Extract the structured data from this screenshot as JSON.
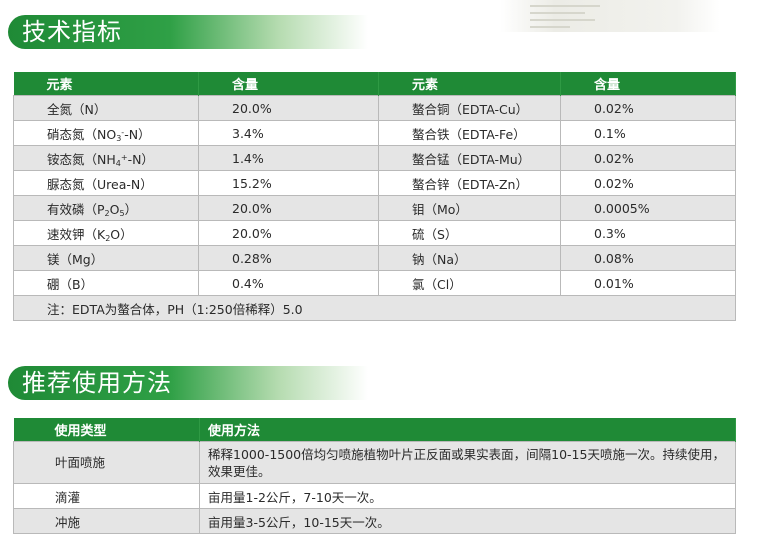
{
  "section1": {
    "title": "技术指标"
  },
  "section2": {
    "title": "推荐使用方法"
  },
  "spec_table": {
    "headers": [
      "元素",
      "含量",
      "元素",
      "含量"
    ],
    "rows": [
      {
        "l_name": "全氮（N）",
        "l_val": "20.0%",
        "r_name": "螯合铜（EDTA-Cu）",
        "r_val": "0.02%"
      },
      {
        "l_name_pre": "硝态氮（NO",
        "l_name_sub": "3",
        "l_name_sup": "-",
        "l_name_post": "-N）",
        "l_val": "3.4%",
        "r_name": "螯合铁（EDTA-Fe）",
        "r_val": "0.1%"
      },
      {
        "l_name_pre": "铵态氮（NH",
        "l_name_sub": "4",
        "l_name_sup": "+",
        "l_name_post": "-N）",
        "l_val": "1.4%",
        "r_name": "螯合锰（EDTA-Mu）",
        "r_val": "0.02%"
      },
      {
        "l_name": "脲态氮（Urea-N）",
        "l_val": "15.2%",
        "r_name": "螯合锌（EDTA-Zn）",
        "r_val": "0.02%"
      },
      {
        "l_name_pre": "有效磷（P",
        "l_name_sub": "2",
        "l_name_mid": "O",
        "l_name_sub2": "5",
        "l_name_post": "）",
        "l_val": "20.0%",
        "r_name": "钼（Mo）",
        "r_val": "0.0005%"
      },
      {
        "l_name_pre": "速效钾（K",
        "l_name_sub": "2",
        "l_name_post": "O）",
        "l_val": "20.0%",
        "r_name": "硫（S）",
        "r_val": "0.3%"
      },
      {
        "l_name": "镁（Mg）",
        "l_val": "0.28%",
        "r_name": "钠（Na）",
        "r_val": "0.08%"
      },
      {
        "l_name": "硼（B）",
        "l_val": "0.4%",
        "r_name": "氯（Cl）",
        "r_val": "0.01%"
      }
    ],
    "note": "注：EDTA为螯合体，PH（1:250倍稀释）5.0"
  },
  "usage_table": {
    "headers": [
      "使用类型",
      "使用方法"
    ],
    "rows": [
      {
        "type": "叶面喷施",
        "method": "稀释1000-1500倍均匀喷施植物叶片正反面或果实表面，间隔10-15天喷施一次。持续使用，效果更佳。"
      },
      {
        "type": "滴灌",
        "method": "亩用量1-2公斤，7-10天一次。"
      },
      {
        "type": "冲施",
        "method": "亩用量3-5公斤，10-15天一次。"
      }
    ]
  }
}
